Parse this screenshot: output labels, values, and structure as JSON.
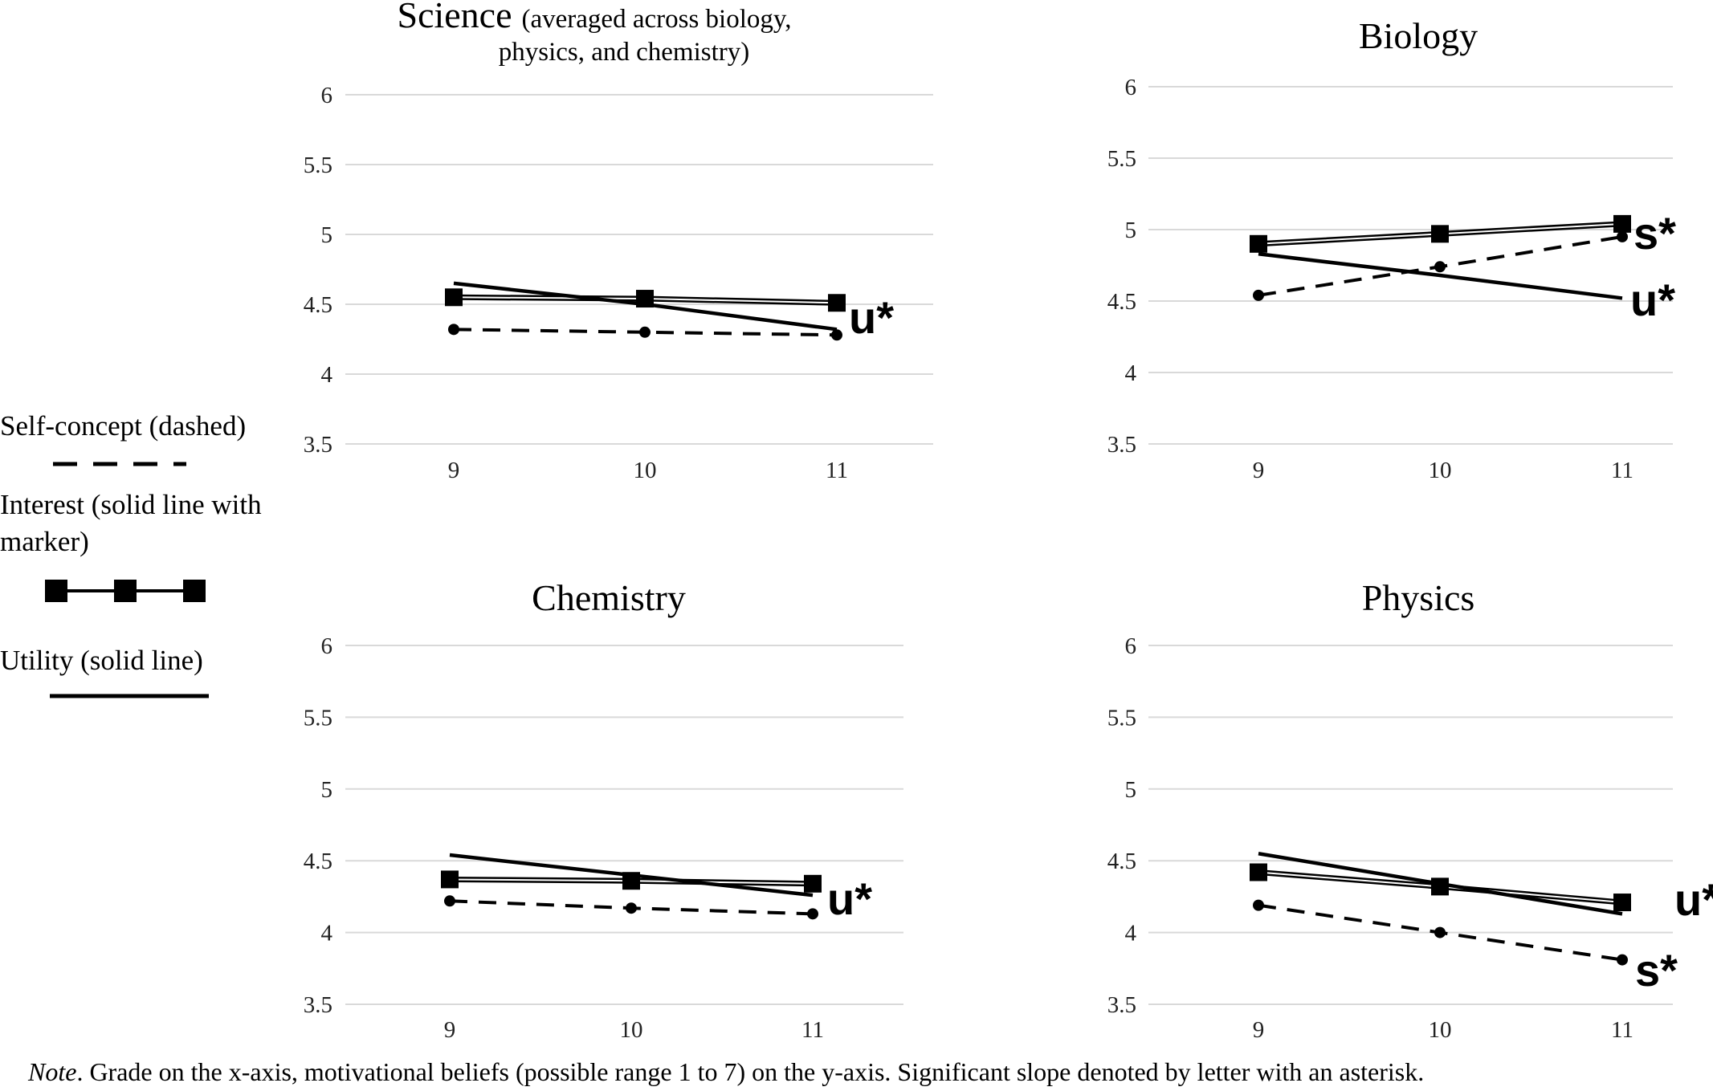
{
  "legend": {
    "self_concept": "Self-concept (dashed)",
    "interest_line1": "Interest (solid line with",
    "interest_line2": "marker)",
    "utility": "Utility (solid line)"
  },
  "note": {
    "label": "Note",
    "text": ". Grade on the x-axis, motivational beliefs (possible range 1 to 7) on the y-axis. Significant slope denoted by letter with an asterisk."
  },
  "chart_data": [
    {
      "type": "line",
      "title": "Science",
      "subtitle_line1": "(averaged across biology,",
      "subtitle_line2": "physics, and chemistry)",
      "categories": [
        "9",
        "10",
        "11"
      ],
      "x": [
        9,
        10,
        11
      ],
      "ylim": [
        3.5,
        6
      ],
      "yticks": [
        "6",
        "5.5",
        "5",
        "4.5",
        "4",
        "3.5"
      ],
      "series": [
        {
          "name": "Self-concept",
          "style": "dashed",
          "values": [
            4.32,
            4.3,
            4.28
          ]
        },
        {
          "name": "Interest",
          "style": "solid-marker",
          "values": [
            4.55,
            4.54,
            4.51
          ]
        },
        {
          "name": "Utility",
          "style": "solid",
          "values": [
            4.65,
            4.5,
            4.32
          ]
        }
      ],
      "annotations": [
        {
          "series": "Utility",
          "label": "u*"
        }
      ]
    },
    {
      "type": "line",
      "title": "Biology",
      "categories": [
        "9",
        "10",
        "11"
      ],
      "x": [
        9,
        10,
        11
      ],
      "ylim": [
        3.5,
        6
      ],
      "yticks": [
        "6",
        "5.5",
        "5",
        "4.5",
        "4",
        "3.5"
      ],
      "series": [
        {
          "name": "Self-concept",
          "style": "dashed",
          "values": [
            4.54,
            4.74,
            4.95
          ]
        },
        {
          "name": "Interest",
          "style": "solid-marker",
          "values": [
            4.9,
            4.97,
            5.04
          ]
        },
        {
          "name": "Utility",
          "style": "solid",
          "values": [
            4.83,
            4.68,
            4.52
          ]
        }
      ],
      "annotations": [
        {
          "series": "Self-concept",
          "label": "s*"
        },
        {
          "series": "Utility",
          "label": "u*"
        }
      ]
    },
    {
      "type": "line",
      "title": "Chemistry",
      "categories": [
        "9",
        "10",
        "11"
      ],
      "x": [
        9,
        10,
        11
      ],
      "ylim": [
        3.5,
        6
      ],
      "yticks": [
        "6",
        "5.5",
        "5",
        "4.5",
        "4",
        "3.5"
      ],
      "series": [
        {
          "name": "Self-concept",
          "style": "dashed",
          "values": [
            4.22,
            4.17,
            4.13
          ]
        },
        {
          "name": "Interest",
          "style": "solid-marker",
          "values": [
            4.37,
            4.36,
            4.34
          ]
        },
        {
          "name": "Utility",
          "style": "solid",
          "values": [
            4.54,
            4.4,
            4.26
          ]
        }
      ],
      "annotations": [
        {
          "series": "Utility",
          "label": "u*"
        }
      ]
    },
    {
      "type": "line",
      "title": "Physics",
      "categories": [
        "9",
        "10",
        "11"
      ],
      "x": [
        9,
        10,
        11
      ],
      "ylim": [
        3.5,
        6
      ],
      "yticks": [
        "6",
        "5.5",
        "5",
        "4.5",
        "4",
        "3.5"
      ],
      "series": [
        {
          "name": "Self-concept",
          "style": "dashed",
          "values": [
            4.19,
            4.0,
            3.81
          ]
        },
        {
          "name": "Interest",
          "style": "solid-marker",
          "values": [
            4.42,
            4.32,
            4.21
          ]
        },
        {
          "name": "Utility",
          "style": "solid",
          "values": [
            4.55,
            4.34,
            4.13
          ]
        }
      ],
      "annotations": [
        {
          "series": "Utility",
          "label": "u*"
        },
        {
          "series": "Self-concept",
          "label": "s*"
        }
      ]
    }
  ]
}
